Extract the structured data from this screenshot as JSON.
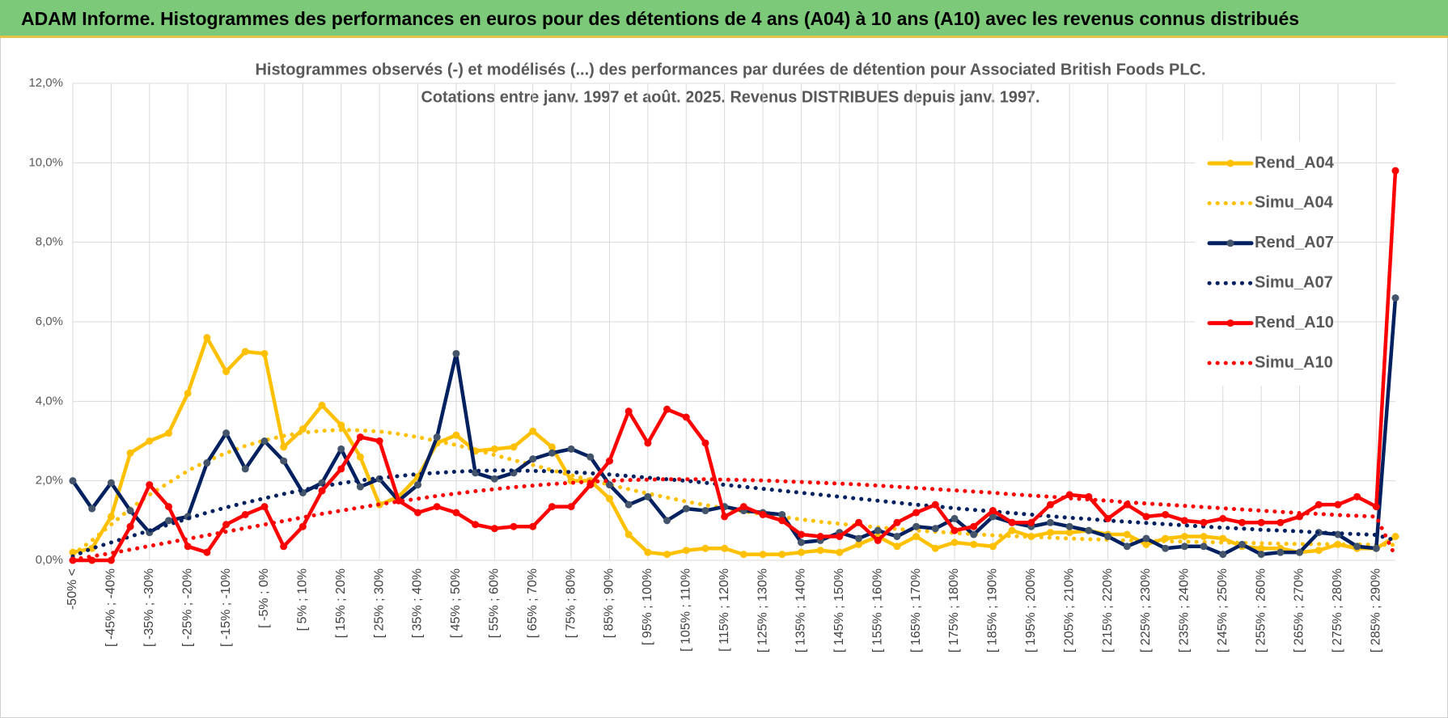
{
  "header": {
    "title": "ADAM Informe. Histogrammes des performances en euros pour des détentions de 4 ans (A04) à 10 ans (A10) avec les revenus connus distribués"
  },
  "chart_data": {
    "type": "line",
    "title": "Histogrammes observés (-) et modélisés (...) des performances par durées de détention pour Associated British Foods PLC.",
    "subtitle": "Cotations entre janv. 1997 et août. 2025. Revenus DISTRIBUES depuis janv. 1997.",
    "categories": [
      "-50% <",
      null,
      "[ -45% ; -40%",
      null,
      "[ -35% ; -30%",
      null,
      "[ -25% ; -20%",
      null,
      "[ -15% ; -10%",
      null,
      "[ -5% ; 0%",
      null,
      "[ 5% ; 10%",
      null,
      "[ 15% ; 20%",
      null,
      "[ 25% ; 30%",
      null,
      "[ 35% ; 40%",
      null,
      "[ 45% ; 50%",
      null,
      "[ 55% ; 60%",
      null,
      "[ 65% ; 70%",
      null,
      "[ 75% ; 80%",
      null,
      "[ 85% ; 90%",
      null,
      "[ 95% ; 100%",
      null,
      "[ 105% ; 110%",
      null,
      "[ 115% ; 120%",
      null,
      "[ 125% ; 130%",
      null,
      "[ 135% ; 140%",
      null,
      "[ 145% ; 150%",
      null,
      "[ 155% ; 160%",
      null,
      "[ 165% ; 170%",
      null,
      "[ 175% ; 180%",
      null,
      "[ 185% ; 190%",
      null,
      "[ 195% ; 200%",
      null,
      "[ 205% ; 210%",
      null,
      "[ 215% ; 220%",
      null,
      "[ 225% ; 230%",
      null,
      "[ 235% ; 240%",
      null,
      "[ 245% ; 250%",
      null,
      "[ 255% ; 260%",
      null,
      "[ 265% ; 270%",
      null,
      "[ 275% ; 280%",
      null,
      "[ 285% ; 290%",
      null
    ],
    "series": [
      {
        "name": "Rend_A04",
        "color": "#FFC000",
        "dash": "solid",
        "marker": true,
        "values": [
          0.2,
          0.3,
          1.1,
          2.7,
          3.0,
          3.2,
          4.2,
          5.6,
          4.75,
          5.25,
          5.2,
          2.85,
          3.3,
          3.9,
          3.4,
          2.6,
          1.4,
          1.6,
          2.1,
          2.95,
          3.15,
          2.75,
          2.8,
          2.85,
          3.25,
          2.85,
          2.0,
          2.0,
          1.55,
          0.65,
          0.2,
          0.15,
          0.25,
          0.3,
          0.3,
          0.15,
          0.15,
          0.15,
          0.2,
          0.25,
          0.2,
          0.4,
          0.6,
          0.35,
          0.6,
          0.3,
          0.45,
          0.4,
          0.35,
          0.75,
          0.6,
          0.7,
          0.7,
          0.75,
          0.65,
          0.65,
          0.4,
          0.55,
          0.6,
          0.6,
          0.55,
          0.35,
          0.3,
          0.3,
          0.2,
          0.25,
          0.4,
          0.3,
          0.3,
          0.6
        ]
      },
      {
        "name": "Simu_A04",
        "color": "#FFC000",
        "dash": "dotted",
        "marker": false,
        "values": [
          0.15,
          0.5,
          0.9,
          1.3,
          1.65,
          1.95,
          2.25,
          2.5,
          2.7,
          2.88,
          3.02,
          3.13,
          3.21,
          3.26,
          3.28,
          3.27,
          3.24,
          3.18,
          3.1,
          3.0,
          2.9,
          2.78,
          2.65,
          2.52,
          2.4,
          2.27,
          2.14,
          2.02,
          1.9,
          1.79,
          1.68,
          1.58,
          1.48,
          1.39,
          1.31,
          1.23,
          1.16,
          1.09,
          1.03,
          0.97,
          0.92,
          0.87,
          0.83,
          0.79,
          0.75,
          0.72,
          0.69,
          0.66,
          0.63,
          0.61,
          0.59,
          0.57,
          0.55,
          0.53,
          0.52,
          0.5,
          0.49,
          0.48,
          0.47,
          0.46,
          0.45,
          0.44,
          0.43,
          0.42,
          0.41,
          0.41,
          0.4,
          0.4,
          0.39,
          0.39
        ]
      },
      {
        "name": "Rend_A07",
        "color": "#002060",
        "dash": "solid",
        "marker": true,
        "values": [
          2.0,
          1.3,
          1.95,
          1.25,
          0.7,
          1.0,
          1.1,
          2.45,
          3.2,
          2.3,
          3.0,
          2.5,
          1.7,
          1.95,
          2.8,
          1.85,
          2.05,
          1.5,
          1.9,
          3.1,
          5.2,
          2.2,
          2.05,
          2.2,
          2.55,
          2.7,
          2.8,
          2.6,
          1.9,
          1.4,
          1.6,
          1.0,
          1.3,
          1.25,
          1.35,
          1.25,
          1.2,
          1.15,
          0.45,
          0.5,
          0.7,
          0.55,
          0.75,
          0.6,
          0.85,
          0.8,
          1.05,
          0.65,
          1.1,
          0.95,
          0.85,
          0.95,
          0.85,
          0.75,
          0.6,
          0.35,
          0.55,
          0.3,
          0.35,
          0.35,
          0.15,
          0.4,
          0.15,
          0.2,
          0.2,
          0.7,
          0.65,
          0.35,
          0.3,
          6.6
        ]
      },
      {
        "name": "Simu_A07",
        "color": "#002060",
        "dash": "dotted",
        "marker": false,
        "values": [
          0.1,
          0.3,
          0.45,
          0.6,
          0.75,
          0.9,
          1.05,
          1.2,
          1.33,
          1.45,
          1.56,
          1.67,
          1.77,
          1.86,
          1.94,
          2.01,
          2.07,
          2.12,
          2.17,
          2.2,
          2.23,
          2.25,
          2.26,
          2.26,
          2.25,
          2.24,
          2.22,
          2.19,
          2.16,
          2.12,
          2.08,
          2.04,
          2.0,
          1.95,
          1.9,
          1.85,
          1.8,
          1.75,
          1.7,
          1.65,
          1.6,
          1.55,
          1.5,
          1.45,
          1.4,
          1.36,
          1.31,
          1.27,
          1.23,
          1.19,
          1.15,
          1.11,
          1.07,
          1.04,
          1.0,
          0.97,
          0.94,
          0.91,
          0.88,
          0.85,
          0.82,
          0.8,
          0.77,
          0.75,
          0.73,
          0.7,
          0.68,
          0.66,
          0.64,
          0.5
        ]
      },
      {
        "name": "Rend_A10",
        "color": "#FF0000",
        "dash": "solid",
        "marker": true,
        "values": [
          0.0,
          0.0,
          0.0,
          0.85,
          1.9,
          1.35,
          0.35,
          0.2,
          0.9,
          1.15,
          1.35,
          0.35,
          0.85,
          1.75,
          2.3,
          3.1,
          3.0,
          1.5,
          1.2,
          1.35,
          1.2,
          0.9,
          0.8,
          0.85,
          0.85,
          1.35,
          1.35,
          1.9,
          2.5,
          3.75,
          2.95,
          3.8,
          3.6,
          2.95,
          1.1,
          1.35,
          1.15,
          1.0,
          0.65,
          0.6,
          0.6,
          0.95,
          0.5,
          0.95,
          1.2,
          1.4,
          0.75,
          0.85,
          1.25,
          0.95,
          0.95,
          1.4,
          1.65,
          1.6,
          1.05,
          1.4,
          1.1,
          1.15,
          1.0,
          0.95,
          1.05,
          0.95,
          0.95,
          0.95,
          1.1,
          1.4,
          1.4,
          1.6,
          1.35,
          9.8
        ]
      },
      {
        "name": "Simu_A10",
        "color": "#FF0000",
        "dash": "dotted",
        "marker": false,
        "values": [
          0.02,
          0.1,
          0.18,
          0.27,
          0.36,
          0.45,
          0.54,
          0.63,
          0.72,
          0.81,
          0.9,
          0.99,
          1.08,
          1.17,
          1.25,
          1.33,
          1.41,
          1.48,
          1.55,
          1.62,
          1.68,
          1.74,
          1.79,
          1.84,
          1.88,
          1.92,
          1.95,
          1.98,
          2.0,
          2.02,
          2.03,
          2.04,
          2.04,
          2.04,
          2.03,
          2.02,
          2.01,
          1.99,
          1.97,
          1.95,
          1.93,
          1.91,
          1.88,
          1.85,
          1.82,
          1.79,
          1.76,
          1.73,
          1.7,
          1.66,
          1.63,
          1.6,
          1.56,
          1.53,
          1.5,
          1.46,
          1.43,
          1.4,
          1.37,
          1.34,
          1.31,
          1.28,
          1.25,
          1.22,
          1.19,
          1.17,
          1.14,
          1.12,
          1.1,
          0.1
        ]
      }
    ],
    "ylim": [
      0,
      12
    ],
    "yticks": [
      {
        "value": 0,
        "label": "0,0%"
      },
      {
        "value": 2,
        "label": "2,0%"
      },
      {
        "value": 4,
        "label": "4,0%"
      },
      {
        "value": 6,
        "label": "6,0%"
      },
      {
        "value": 8,
        "label": "8,0%"
      },
      {
        "value": 10,
        "label": "10,0%"
      },
      {
        "value": 12,
        "label": "12,0%"
      }
    ],
    "grid": true,
    "legend": "right"
  }
}
